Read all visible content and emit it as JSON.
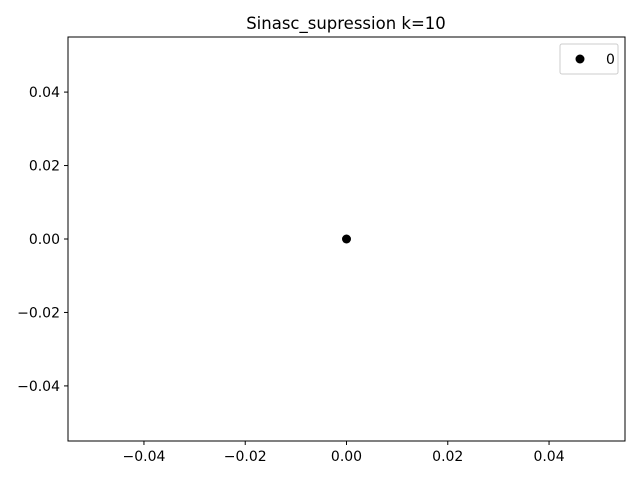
{
  "chart_data": {
    "type": "scatter",
    "title": "Sinasc_supression k=10",
    "xlabel": "",
    "ylabel": "",
    "xlim": [
      -0.055,
      0.055
    ],
    "ylim": [
      -0.055,
      0.055
    ],
    "xticks": [
      -0.04,
      -0.02,
      0.0,
      0.02,
      0.04
    ],
    "yticks": [
      -0.04,
      -0.02,
      0.0,
      0.02,
      0.04
    ],
    "xtick_labels": [
      "−0.04",
      "−0.02",
      "0.00",
      "0.02",
      "0.04"
    ],
    "ytick_labels": [
      "−0.04",
      "−0.02",
      "0.00",
      "0.02",
      "0.04"
    ],
    "grid": false,
    "legend_position": "top-right",
    "series": [
      {
        "name": "0",
        "color": "#000000",
        "points": [
          {
            "x": 0.0,
            "y": 0.0
          }
        ]
      }
    ]
  }
}
